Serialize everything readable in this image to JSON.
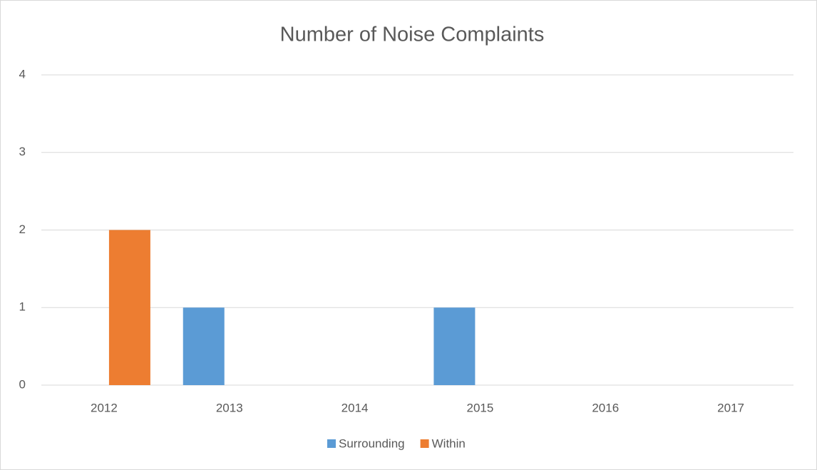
{
  "chart_data": {
    "type": "bar",
    "title": "Number of Noise Complaints",
    "categories": [
      "2012",
      "2013",
      "2014",
      "2015",
      "2016",
      "2017"
    ],
    "series": [
      {
        "name": "Surrounding",
        "color": "#5b9bd5",
        "values": [
          0,
          1,
          0,
          1,
          0,
          0
        ]
      },
      {
        "name": "Within",
        "color": "#ed7d31",
        "values": [
          2,
          0,
          0,
          0,
          0,
          0
        ]
      }
    ],
    "ylim": [
      0,
      4
    ],
    "yticks": [
      0,
      1,
      2,
      3,
      4
    ],
    "grid": true,
    "legend": "bottom"
  }
}
